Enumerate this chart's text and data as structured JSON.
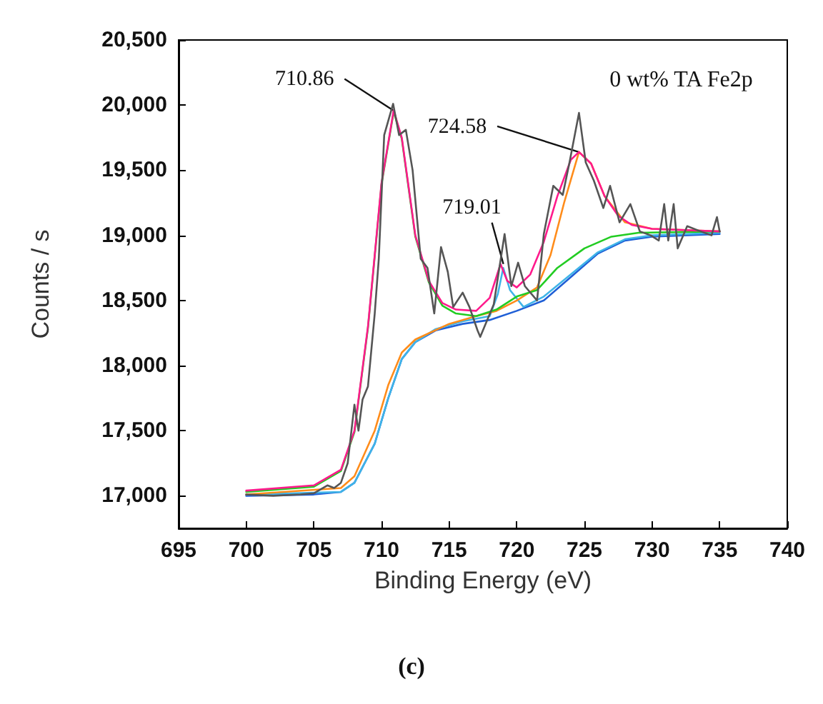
{
  "chart_data": {
    "type": "line",
    "xlabel": "Binding Energy (eV)",
    "ylabel": "Counts / s",
    "xlim": [
      695,
      740
    ],
    "xticks": [
      695,
      700,
      705,
      710,
      715,
      720,
      725,
      730,
      735,
      740
    ],
    "ylim": [
      16750,
      20500
    ],
    "yticks": [
      {
        "value": 17000,
        "label": "17,000"
      },
      {
        "value": 17500,
        "label": "17,500"
      },
      {
        "value": 18000,
        "label": "18,000"
      },
      {
        "value": 18500,
        "label": "18,500"
      },
      {
        "value": 19000,
        "label": "19,000"
      },
      {
        "value": 19500,
        "label": "19,500"
      },
      {
        "value": 20000,
        "label": "20,000"
      },
      {
        "value": 20500,
        "label": "20,500"
      }
    ],
    "grid": false,
    "marker": "none",
    "line_style": "solid",
    "annotations": [
      {
        "text": "710.86",
        "x": 710.86,
        "y": 19960
      },
      {
        "text": "719.01",
        "x": 719.01,
        "y": 18780
      },
      {
        "text": "724.58",
        "x": 724.58,
        "y": 19640
      },
      "0 wt% TA Fe2p",
      "(c)"
    ],
    "series": [
      {
        "color": "#1f5fd6",
        "x": [
          700,
          705,
          707,
          708,
          709.5,
          710.5,
          711.5,
          712.5,
          714,
          716,
          718,
          720,
          722,
          724,
          726,
          728,
          730,
          735
        ],
        "values": [
          17000,
          17010,
          17030,
          17100,
          17400,
          17750,
          18050,
          18180,
          18270,
          18320,
          18350,
          18420,
          18500,
          18680,
          18860,
          18960,
          18990,
          19010
        ]
      },
      {
        "color": "#3fb4e8",
        "x": [
          700,
          707,
          708,
          709.5,
          710.5,
          711.5,
          712.5,
          714,
          716,
          718,
          718.6,
          719,
          719.5,
          720.5,
          722,
          724,
          726,
          728,
          730,
          735
        ],
        "values": [
          17010,
          17030,
          17100,
          17400,
          17750,
          18050,
          18180,
          18280,
          18340,
          18380,
          18550,
          18750,
          18580,
          18450,
          18530,
          18700,
          18870,
          18970,
          19000,
          19020
        ]
      },
      {
        "color": "#ff8c1a",
        "x": [
          700,
          707,
          708,
          709.5,
          710.5,
          711.5,
          712.5,
          715,
          717,
          718.5,
          720,
          721.5,
          722.5,
          723.5,
          724.6,
          725.5,
          726.5,
          728,
          730,
          735
        ],
        "values": [
          17010,
          17060,
          17150,
          17500,
          17850,
          18100,
          18200,
          18320,
          18380,
          18420,
          18500,
          18600,
          18850,
          19250,
          19640,
          19550,
          19300,
          19100,
          19050,
          19030
        ]
      },
      {
        "color": "#22cc22",
        "x": [
          700,
          705,
          707,
          708,
          709,
          710,
          710.9,
          711.5,
          712.5,
          713.5,
          714.5,
          715.5,
          717,
          718.5,
          720,
          721.5,
          723,
          725,
          727,
          729,
          735
        ],
        "values": [
          17030,
          17070,
          17190,
          17490,
          18290,
          19390,
          19950,
          19740,
          18990,
          18640,
          18460,
          18400,
          18380,
          18430,
          18530,
          18580,
          18750,
          18900,
          18990,
          19020,
          19030
        ]
      },
      {
        "color": "#ff1a8c",
        "x": [
          700,
          705,
          707,
          708,
          709,
          710,
          710.9,
          711.5,
          712.5,
          713.5,
          714.5,
          715.5,
          717,
          718,
          718.8,
          719.3,
          720,
          721,
          722,
          723,
          724,
          724.6,
          725.5,
          726.5,
          727.5,
          728.5,
          730,
          735
        ],
        "values": [
          17040,
          17080,
          17200,
          17500,
          18300,
          19400,
          19960,
          19750,
          19000,
          18650,
          18480,
          18430,
          18420,
          18520,
          18780,
          18650,
          18600,
          18700,
          18950,
          19300,
          19580,
          19640,
          19550,
          19300,
          19150,
          19080,
          19050,
          19030
        ]
      },
      {
        "color": "#555555",
        "x": [
          700,
          702,
          704,
          705,
          706,
          706.5,
          707,
          707.5,
          708,
          708.3,
          708.6,
          709,
          709.5,
          709.8,
          710.2,
          710.86,
          711.3,
          711.8,
          712.3,
          712.9,
          713.4,
          713.9,
          714.4,
          714.9,
          715.3,
          716,
          716.5,
          717.1,
          717.3,
          718.3,
          719.1,
          719.6,
          720.1,
          720.6,
          721.5,
          722,
          722.7,
          723.4,
          723.9,
          724.6,
          725.1,
          725.7,
          726.4,
          726.9,
          727.6,
          728.4,
          729.1,
          729.9,
          730.5,
          730.9,
          731.2,
          731.6,
          731.9,
          732.6,
          733.6,
          734.4,
          734.8,
          735
        ],
        "values": [
          17010,
          17000,
          17010,
          17020,
          17080,
          17060,
          17100,
          17250,
          17700,
          17500,
          17740,
          17840,
          18400,
          18820,
          19770,
          20010,
          19770,
          19810,
          19500,
          18820,
          18750,
          18400,
          18910,
          18720,
          18450,
          18560,
          18450,
          18270,
          18220,
          18470,
          19010,
          18610,
          18790,
          18610,
          18500,
          19010,
          19380,
          19310,
          19560,
          19940,
          19560,
          19420,
          19210,
          19380,
          19100,
          19240,
          19030,
          19000,
          18960,
          19240,
          18960,
          19240,
          18900,
          19070,
          19030,
          19000,
          19140,
          19030
        ]
      }
    ]
  }
}
